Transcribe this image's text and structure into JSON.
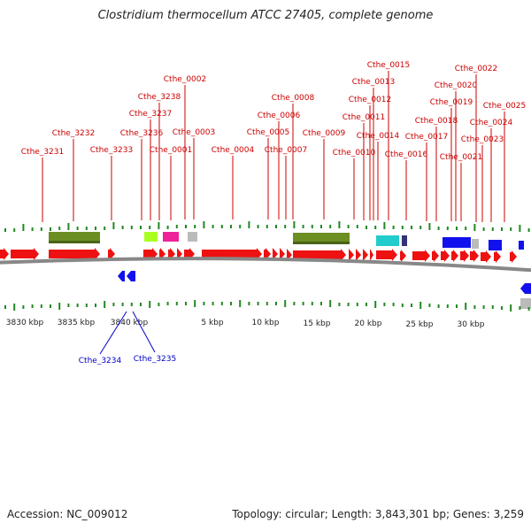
{
  "title": "Clostridium thermocellum ATCC 27405, complete genome",
  "footer": {
    "accession": "Accession: NC_009012",
    "summary": "Topology: circular; Length: 3,843,301 bp; Genes: 3,259"
  },
  "colors": {
    "gene_forward": "#ee1111",
    "gene_reverse": "#1111ee",
    "label_top": "#cc0000",
    "label_bottom": "#0000cc",
    "tick": "#228822",
    "backbone": "#888888",
    "feature_olive": "#6b8e23",
    "feature_lime": "#aaff22",
    "feature_magenta": "#ee2299",
    "feature_cyan": "#22cccc",
    "feature_navy": "#333377",
    "feature_grey": "#bbbbbb"
  },
  "top_labels": [
    {
      "text": "Cthe_3231"
    },
    {
      "text": "Cthe_3232"
    },
    {
      "text": "Cthe_3233"
    },
    {
      "text": "Cthe_3236"
    },
    {
      "text": "Cthe_3237"
    },
    {
      "text": "Cthe_3238"
    },
    {
      "text": "Cthe_0001"
    },
    {
      "text": "Cthe_0002"
    },
    {
      "text": "Cthe_0003"
    },
    {
      "text": "Cthe_0004"
    },
    {
      "text": "Cthe_0005"
    },
    {
      "text": "Cthe_0006"
    },
    {
      "text": "Cthe_0007"
    },
    {
      "text": "Cthe_0008"
    },
    {
      "text": "Cthe_0009"
    },
    {
      "text": "Cthe_0010"
    },
    {
      "text": "Cthe_0011"
    },
    {
      "text": "Cthe_0012"
    },
    {
      "text": "Cthe_0013"
    },
    {
      "text": "Cthe_0014"
    },
    {
      "text": "Cthe_0015"
    },
    {
      "text": "Cthe_0016"
    },
    {
      "text": "Cthe_0017"
    },
    {
      "text": "Cthe_0018"
    },
    {
      "text": "Cthe_0019"
    },
    {
      "text": "Cthe_0020"
    },
    {
      "text": "Cthe_0021"
    },
    {
      "text": "Cthe_0022"
    },
    {
      "text": "Cthe_0023"
    },
    {
      "text": "Cthe_0024"
    },
    {
      "text": "Cthe_0025"
    }
  ],
  "bottom_labels": [
    {
      "text": "Cthe_3234"
    },
    {
      "text": "Cthe_3235"
    }
  ],
  "scale_labels": [
    "3830 kbp",
    "3835 kbp",
    "3840 kbp",
    "5 kbp",
    "10 kbp",
    "15 kbp",
    "20 kbp",
    "25 kbp",
    "30 kbp"
  ]
}
